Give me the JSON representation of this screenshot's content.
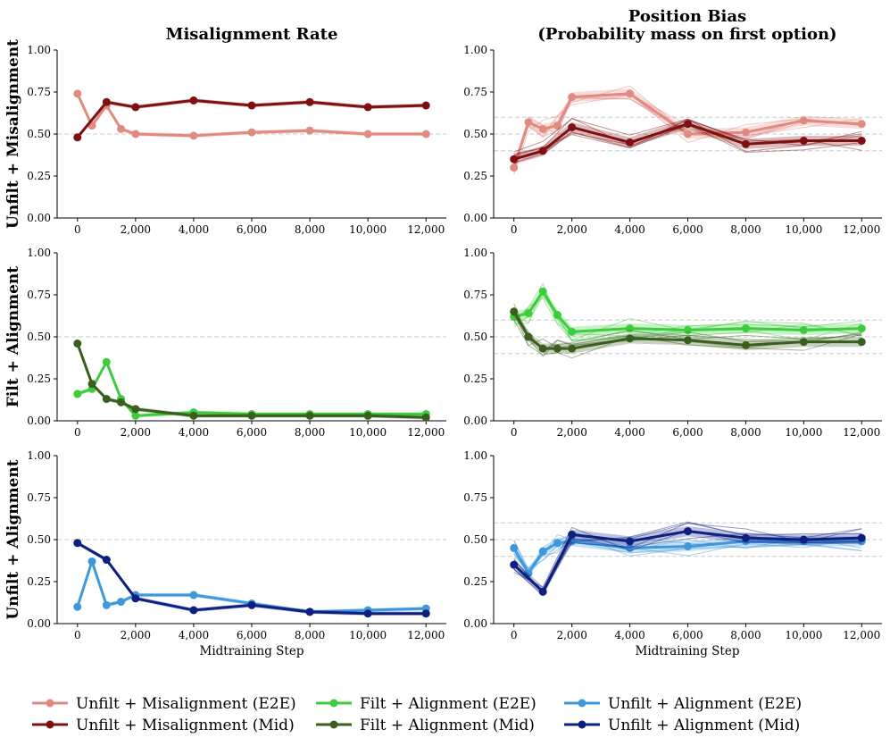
{
  "chart_data": {
    "type": "line",
    "column_titles": [
      "Misalignment Rate",
      "Position Bias",
      "(Probability mass on first option)"
    ],
    "row_labels": [
      "Unfilt + Misalignment",
      "Filt + Alignment",
      "Unfilt + Alignment"
    ],
    "xlabel": "Midtraining Step",
    "xlim": [
      -700,
      12700
    ],
    "ylim": [
      0,
      1
    ],
    "xticks": [
      0,
      2000,
      4000,
      6000,
      8000,
      10000,
      12000
    ],
    "xtick_labels": [
      "0",
      "2,000",
      "4,000",
      "6,000",
      "8,000",
      "10,000",
      "12,000"
    ],
    "yticks": [
      0,
      0.25,
      0.5,
      0.75,
      1.0
    ],
    "ytick_labels": [
      "0.00",
      "0.25",
      "0.50",
      "0.75",
      "1.00"
    ],
    "reference_lines": {
      "misalignment": [
        0.5
      ],
      "position_bias": [
        0.4,
        0.5,
        0.6
      ]
    },
    "legend": [
      {
        "label": "Unfilt + Misalignment (E2E)",
        "color": "#e08a80"
      },
      {
        "label": "Unfilt + Misalignment (Mid)",
        "color": "#7f1010"
      },
      {
        "label": "Filt + Alignment (E2E)",
        "color": "#3ccd3c"
      },
      {
        "label": "Filt + Alignment (Mid)",
        "color": "#3a5e1e"
      },
      {
        "label": "Unfilt + Alignment (E2E)",
        "color": "#3f97dc"
      },
      {
        "label": "Unfilt + Alignment (Mid)",
        "color": "#0d1f80"
      }
    ],
    "panels": [
      {
        "row": 0,
        "col": 0,
        "series": [
          {
            "name": "Unfilt + Misalignment (E2E)",
            "color": "#e08a80",
            "x": [
              0,
              500,
              1000,
              1500,
              2000,
              4000,
              6000,
              8000,
              10000,
              12000
            ],
            "y": [
              0.74,
              0.55,
              0.67,
              0.53,
              0.5,
              0.49,
              0.51,
              0.52,
              0.5,
              0.5
            ]
          },
          {
            "name": "Unfilt + Misalignment (Mid)",
            "color": "#7f1010",
            "x": [
              0,
              1000,
              2000,
              4000,
              6000,
              8000,
              10000,
              12000
            ],
            "y": [
              0.48,
              0.69,
              0.66,
              0.7,
              0.67,
              0.69,
              0.66,
              0.67
            ]
          }
        ]
      },
      {
        "row": 0,
        "col": 1,
        "series": [
          {
            "name": "Unfilt + Misalignment (E2E)",
            "color": "#e08a80",
            "x": [
              0,
              500,
              1000,
              1500,
              2000,
              4000,
              6000,
              8000,
              10000,
              12000
            ],
            "y": [
              0.3,
              0.57,
              0.53,
              0.55,
              0.72,
              0.74,
              0.5,
              0.51,
              0.58,
              0.56
            ]
          },
          {
            "name": "Unfilt + Misalignment (Mid)",
            "color": "#7f1010",
            "x": [
              0,
              1000,
              2000,
              4000,
              6000,
              8000,
              10000,
              12000
            ],
            "y": [
              0.35,
              0.4,
              0.54,
              0.45,
              0.56,
              0.44,
              0.46,
              0.46
            ]
          }
        ]
      },
      {
        "row": 1,
        "col": 0,
        "series": [
          {
            "name": "Filt + Alignment (E2E)",
            "color": "#3ccd3c",
            "x": [
              0,
              500,
              1000,
              1500,
              2000,
              4000,
              6000,
              8000,
              10000,
              12000
            ],
            "y": [
              0.16,
              0.19,
              0.35,
              0.13,
              0.03,
              0.05,
              0.04,
              0.04,
              0.04,
              0.04
            ]
          },
          {
            "name": "Filt + Alignment (Mid)",
            "color": "#3a5e1e",
            "x": [
              0,
              500,
              1000,
              1500,
              2000,
              4000,
              6000,
              8000,
              10000,
              12000
            ],
            "y": [
              0.46,
              0.22,
              0.13,
              0.11,
              0.07,
              0.03,
              0.03,
              0.03,
              0.03,
              0.02
            ]
          }
        ]
      },
      {
        "row": 1,
        "col": 1,
        "series": [
          {
            "name": "Filt + Alignment (E2E)",
            "color": "#3ccd3c",
            "x": [
              0,
              500,
              1000,
              1500,
              2000,
              4000,
              6000,
              8000,
              10000,
              12000
            ],
            "y": [
              0.62,
              0.64,
              0.77,
              0.63,
              0.53,
              0.55,
              0.54,
              0.55,
              0.54,
              0.55
            ]
          },
          {
            "name": "Filt + Alignment (Mid)",
            "color": "#3a5e1e",
            "x": [
              0,
              500,
              1000,
              1500,
              2000,
              4000,
              6000,
              8000,
              10000,
              12000
            ],
            "y": [
              0.65,
              0.5,
              0.43,
              0.43,
              0.43,
              0.49,
              0.48,
              0.45,
              0.47,
              0.47
            ]
          }
        ]
      },
      {
        "row": 2,
        "col": 0,
        "series": [
          {
            "name": "Unfilt + Alignment (E2E)",
            "color": "#3f97dc",
            "x": [
              0,
              500,
              1000,
              1500,
              2000,
              4000,
              6000,
              8000,
              10000,
              12000
            ],
            "y": [
              0.1,
              0.37,
              0.11,
              0.13,
              0.17,
              0.17,
              0.12,
              0.07,
              0.08,
              0.09
            ]
          },
          {
            "name": "Unfilt + Alignment (Mid)",
            "color": "#0d1f80",
            "x": [
              0,
              1000,
              2000,
              4000,
              6000,
              8000,
              10000,
              12000
            ],
            "y": [
              0.48,
              0.38,
              0.15,
              0.08,
              0.11,
              0.07,
              0.06,
              0.06
            ]
          }
        ]
      },
      {
        "row": 2,
        "col": 1,
        "series": [
          {
            "name": "Unfilt + Alignment (E2E)",
            "color": "#3f97dc",
            "x": [
              0,
              500,
              1000,
              1500,
              2000,
              4000,
              6000,
              8000,
              10000,
              12000
            ],
            "y": [
              0.45,
              0.3,
              0.43,
              0.48,
              0.49,
              0.45,
              0.46,
              0.49,
              0.49,
              0.49
            ]
          },
          {
            "name": "Unfilt + Alignment (Mid)",
            "color": "#0d1f80",
            "x": [
              0,
              1000,
              2000,
              4000,
              6000,
              8000,
              10000,
              12000
            ],
            "y": [
              0.35,
              0.19,
              0.53,
              0.49,
              0.55,
              0.51,
              0.5,
              0.51
            ]
          }
        ]
      }
    ]
  }
}
